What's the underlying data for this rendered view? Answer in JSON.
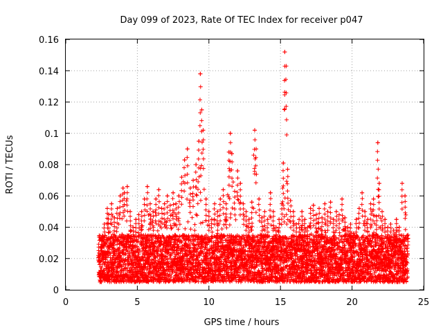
{
  "chart_data": {
    "type": "scatter",
    "title": "Day 099 of 2023, Rate Of TEC Index for receiver p047",
    "xlabel": "GPS time / hours",
    "ylabel": "ROTI / TECUs",
    "xlim": [
      0,
      25
    ],
    "ylim": [
      0,
      0.16
    ],
    "xticks": [
      0,
      5,
      10,
      15,
      20,
      25
    ],
    "xtick_labels": [
      "0",
      "5",
      "10",
      "15",
      "20",
      "25"
    ],
    "yticks": [
      0,
      0.02,
      0.04,
      0.06,
      0.08,
      0.1,
      0.12,
      0.14,
      0.16
    ],
    "ytick_labels": [
      "0",
      "0.02",
      "0.04",
      "0.06",
      "0.08",
      "0.1",
      "0.12",
      "0.14",
      "0.16"
    ],
    "grid": true,
    "marker": "+",
    "color": "#ff0000",
    "series": [
      {
        "name": "ROTI",
        "x": [
          2.3,
          2.5,
          2.7,
          2.9,
          3.0,
          3.2,
          3.4,
          3.6,
          3.8,
          4.0,
          4.1,
          4.3,
          4.5,
          4.7,
          4.9,
          5.1,
          5.3,
          5.5,
          5.7,
          5.9,
          6.1,
          6.3,
          6.5,
          6.7,
          6.9,
          7.1,
          7.3,
          7.5,
          7.7,
          7.9,
          8.1,
          8.3,
          8.5,
          8.7,
          8.9,
          9.1,
          9.3,
          9.4,
          9.5,
          9.6,
          9.8,
          10.0,
          10.2,
          10.4,
          10.6,
          10.8,
          11.0,
          11.2,
          11.4,
          11.5,
          11.6,
          11.8,
          12.0,
          12.2,
          12.4,
          12.6,
          12.8,
          13.0,
          13.2,
          13.3,
          13.5,
          13.7,
          13.9,
          14.1,
          14.3,
          14.5,
          14.7,
          14.9,
          15.1,
          15.2,
          15.3,
          15.4,
          15.5,
          15.7,
          15.9,
          16.1,
          16.3,
          16.5,
          16.7,
          16.9,
          17.1,
          17.3,
          17.5,
          17.7,
          17.9,
          18.1,
          18.3,
          18.5,
          18.7,
          18.9,
          19.1,
          19.3,
          19.5,
          19.7,
          19.9,
          20.1,
          20.3,
          20.5,
          20.7,
          20.9,
          21.1,
          21.3,
          21.5,
          21.7,
          21.8,
          21.9,
          22.1,
          22.3,
          22.5,
          22.7,
          22.9,
          23.1,
          23.3,
          23.5,
          23.7,
          23.9
        ],
        "y": [
          0.025,
          0.033,
          0.042,
          0.052,
          0.048,
          0.055,
          0.046,
          0.052,
          0.06,
          0.065,
          0.062,
          0.066,
          0.05,
          0.04,
          0.045,
          0.048,
          0.05,
          0.058,
          0.066,
          0.055,
          0.05,
          0.058,
          0.064,
          0.052,
          0.055,
          0.06,
          0.054,
          0.062,
          0.055,
          0.06,
          0.072,
          0.083,
          0.09,
          0.065,
          0.07,
          0.08,
          0.095,
          0.138,
          0.115,
          0.102,
          0.058,
          0.05,
          0.045,
          0.055,
          0.05,
          0.058,
          0.064,
          0.055,
          0.088,
          0.1,
          0.087,
          0.063,
          0.076,
          0.068,
          0.055,
          0.05,
          0.045,
          0.056,
          0.102,
          0.09,
          0.058,
          0.046,
          0.05,
          0.045,
          0.062,
          0.05,
          0.04,
          0.045,
          0.055,
          0.081,
          0.152,
          0.143,
          0.077,
          0.057,
          0.05,
          0.042,
          0.045,
          0.05,
          0.045,
          0.04,
          0.052,
          0.054,
          0.048,
          0.052,
          0.046,
          0.055,
          0.05,
          0.056,
          0.045,
          0.05,
          0.048,
          0.058,
          0.046,
          0.04,
          0.042,
          0.036,
          0.045,
          0.052,
          0.062,
          0.05,
          0.045,
          0.055,
          0.058,
          0.047,
          0.094,
          0.068,
          0.05,
          0.045,
          0.04,
          0.042,
          0.038,
          0.045,
          0.04,
          0.068,
          0.06,
          0.035
        ]
      }
    ]
  }
}
